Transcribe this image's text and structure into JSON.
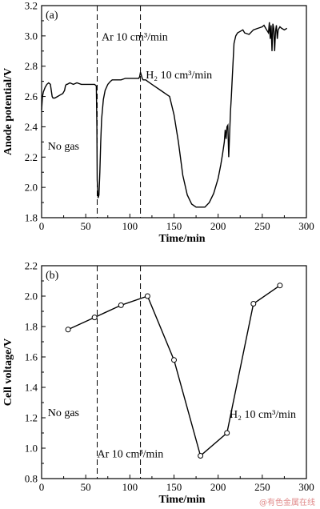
{
  "chart_data": [
    {
      "type": "line",
      "panel_label": "(a)",
      "xlabel": "Time/min",
      "ylabel": "Anode potential/V",
      "xlim": [
        0,
        300
      ],
      "ylim": [
        1.8,
        3.2
      ],
      "x_ticks": [
        0,
        50,
        100,
        150,
        200,
        250,
        300
      ],
      "y_ticks": [
        1.8,
        2.0,
        2.2,
        2.4,
        2.6,
        2.8,
        3.0,
        3.2
      ],
      "vlines": [
        63,
        112
      ],
      "annotations": [
        {
          "text": "No gas",
          "x": 7,
          "y": 2.25
        },
        {
          "text": "Ar 10 cm³/min",
          "x": 68,
          "y": 2.97
        },
        {
          "text": "H₂ 10 cm³/min",
          "x": 118,
          "y": 2.72
        }
      ],
      "series": [
        {
          "x": [
            0,
            1,
            2,
            4,
            6,
            8,
            10,
            11,
            12,
            13,
            15,
            18,
            21,
            24,
            26,
            27,
            28,
            29,
            32,
            36,
            40,
            45,
            50,
            55,
            60,
            62,
            62.6,
            63,
            64,
            65,
            66,
            67,
            68,
            70,
            72,
            75,
            78,
            80,
            85,
            90,
            95,
            100,
            105,
            110,
            111,
            112,
            113,
            114,
            115,
            116,
            118,
            120,
            125,
            130,
            135,
            140,
            145,
            150,
            155,
            160,
            165,
            170,
            175,
            180,
            185,
            190,
            195,
            200,
            203,
            205,
            207,
            208,
            209,
            210,
            211,
            212,
            213,
            214,
            215,
            216,
            218,
            220,
            222,
            225,
            228,
            230,
            235,
            240,
            245,
            250,
            252,
            255,
            257,
            258,
            259,
            260,
            261,
            262,
            263,
            264,
            265,
            266,
            267,
            268,
            270,
            272,
            275,
            278
          ],
          "y": [
            2.51,
            2.6,
            2.63,
            2.66,
            2.68,
            2.69,
            2.68,
            2.64,
            2.6,
            2.59,
            2.59,
            2.6,
            2.61,
            2.62,
            2.64,
            2.67,
            2.68,
            2.68,
            2.69,
            2.68,
            2.69,
            2.68,
            2.68,
            2.68,
            2.68,
            2.67,
            2.4,
            2.05,
            1.93,
            1.95,
            2.1,
            2.3,
            2.45,
            2.58,
            2.64,
            2.68,
            2.7,
            2.71,
            2.71,
            2.71,
            2.72,
            2.72,
            2.72,
            2.72,
            2.73,
            2.76,
            2.74,
            2.72,
            2.71,
            2.71,
            2.71,
            2.7,
            2.68,
            2.66,
            2.64,
            2.62,
            2.6,
            2.48,
            2.3,
            2.08,
            1.95,
            1.89,
            1.87,
            1.87,
            1.87,
            1.9,
            1.96,
            2.06,
            2.15,
            2.22,
            2.3,
            2.38,
            2.32,
            2.4,
            2.41,
            2.2,
            2.35,
            2.5,
            2.6,
            2.72,
            2.95,
            3.0,
            3.02,
            3.03,
            3.04,
            3.02,
            3.01,
            3.04,
            3.05,
            3.06,
            3.07,
            3.04,
            3.02,
            3.09,
            2.98,
            3.07,
            2.9,
            3.08,
            3.05,
            2.9,
            3.03,
            3.07,
            2.98,
            3.04,
            3.06,
            3.05,
            3.04,
            3.05
          ]
        }
      ]
    },
    {
      "type": "line",
      "panel_label": "(b)",
      "xlabel": "Time/min",
      "ylabel": "Cell voltage/V",
      "xlim": [
        0,
        300
      ],
      "ylim": [
        0.8,
        2.2
      ],
      "x_ticks": [
        0,
        50,
        100,
        150,
        200,
        250,
        300
      ],
      "y_ticks": [
        0.8,
        1.0,
        1.2,
        1.4,
        1.6,
        1.8,
        2.0,
        2.2
      ],
      "vlines": [
        63,
        112
      ],
      "annotations": [
        {
          "text": "No gas",
          "x": 7,
          "y": 1.21
        },
        {
          "text": "Ar 10 cm³/min",
          "x": 63,
          "y": 0.94
        },
        {
          "text": "H₂ 10 cm³/min",
          "x": 213,
          "y": 1.2
        }
      ],
      "series": [
        {
          "x": [
            30,
            60,
            90,
            120,
            150,
            180,
            210,
            240,
            270
          ],
          "y": [
            1.78,
            1.86,
            1.94,
            2.0,
            1.58,
            0.95,
            1.1,
            1.95,
            2.07
          ]
        }
      ]
    }
  ],
  "watermark": "@有色金属在线"
}
